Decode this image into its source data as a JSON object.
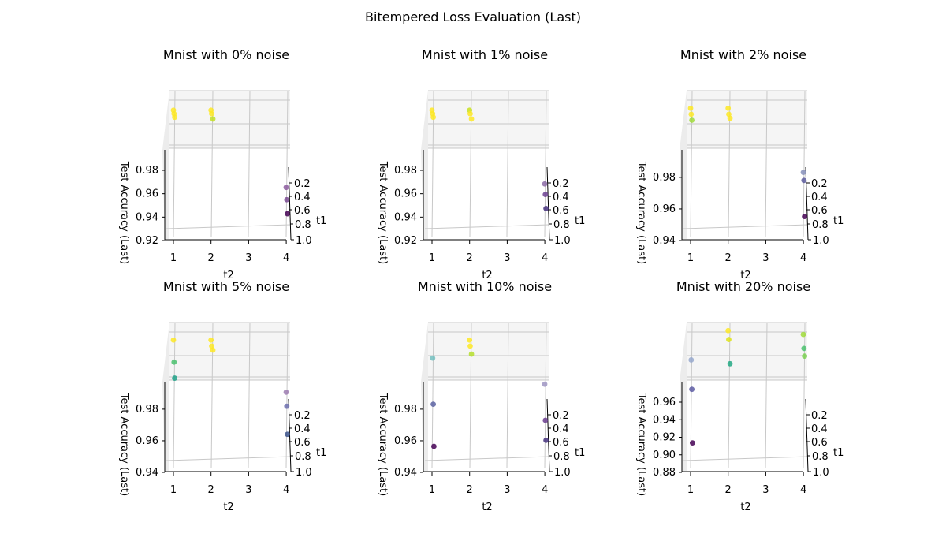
{
  "figure": {
    "title": "Bitempered Loss Evaluation (Last)"
  },
  "chart_data": [
    {
      "type": "scatter",
      "title": "Mnist with 0% noise",
      "xlabel": "t2",
      "ylabel": "t1",
      "zlabel": "Test Accuracy (Last)",
      "x_ticks": [
        "1",
        "2",
        "3",
        "4"
      ],
      "y_ticks": [
        "0.2",
        "0.4",
        "0.6",
        "0.8",
        "1.0"
      ],
      "z_ticks": [
        "0.92",
        "0.94",
        "0.96",
        "0.98"
      ],
      "z_range": [
        0.92,
        1.0
      ],
      "points": [
        {
          "t2": 1,
          "t1": 0.2,
          "acc": 0.992,
          "color": "#fde725"
        },
        {
          "t2": 2,
          "t1": 0.2,
          "acc": 0.992,
          "color": "#fde725"
        },
        {
          "t2": 1,
          "t1": 0.4,
          "acc": 0.99,
          "color": "#fde725"
        },
        {
          "t2": 2,
          "t1": 0.4,
          "acc": 0.99,
          "color": "#fde725"
        },
        {
          "t2": 1,
          "t1": 0.6,
          "acc": 0.988,
          "color": "#fde725"
        },
        {
          "t2": 2,
          "t1": 0.8,
          "acc": 0.987,
          "color": "#c2df23"
        },
        {
          "t2": 4,
          "t1": 0.2,
          "acc": 0.948,
          "color": "#8b5b9e"
        },
        {
          "t2": 4,
          "t1": 0.4,
          "acc": 0.941,
          "color": "#7a4a92"
        },
        {
          "t2": 4,
          "t1": 0.6,
          "acc": 0.933,
          "color": "#440154"
        }
      ]
    },
    {
      "type": "scatter",
      "title": "Mnist with 1% noise",
      "xlabel": "t2",
      "ylabel": "t1",
      "zlabel": "Test Accuracy (Last)",
      "x_ticks": [
        "1",
        "2",
        "3",
        "4"
      ],
      "y_ticks": [
        "0.2",
        "0.4",
        "0.6",
        "0.8",
        "1.0"
      ],
      "z_ticks": [
        "0.92",
        "0.94",
        "0.96",
        "0.98"
      ],
      "z_range": [
        0.92,
        1.0
      ],
      "points": [
        {
          "t2": 1,
          "t1": 0.2,
          "acc": 0.992,
          "color": "#fde725"
        },
        {
          "t2": 2,
          "t1": 0.2,
          "acc": 0.992,
          "color": "#c8e020"
        },
        {
          "t2": 1,
          "t1": 0.4,
          "acc": 0.99,
          "color": "#fde725"
        },
        {
          "t2": 2,
          "t1": 0.4,
          "acc": 0.99,
          "color": "#fde725"
        },
        {
          "t2": 1,
          "t1": 0.6,
          "acc": 0.988,
          "color": "#fde725"
        },
        {
          "t2": 2,
          "t1": 0.8,
          "acc": 0.987,
          "color": "#fde725"
        },
        {
          "t2": 4,
          "t1": 0.2,
          "acc": 0.95,
          "color": "#8b6aa6"
        },
        {
          "t2": 4,
          "t1": 0.4,
          "acc": 0.944,
          "color": "#6b3f91"
        },
        {
          "t2": 4,
          "t1": 0.6,
          "acc": 0.936,
          "color": "#46337e"
        }
      ]
    },
    {
      "type": "scatter",
      "title": "Mnist with 2% noise",
      "xlabel": "t2",
      "ylabel": "t1",
      "zlabel": "Test Accuracy (Last)",
      "x_ticks": [
        "1",
        "2",
        "3",
        "4"
      ],
      "y_ticks": [
        "0.2",
        "0.4",
        "0.6",
        "0.8",
        "1.0"
      ],
      "z_ticks": [
        "0.94",
        "0.96",
        "0.98"
      ],
      "z_range": [
        0.93,
        1.0
      ],
      "points": [
        {
          "t2": 1,
          "t1": 0.2,
          "acc": 0.994,
          "color": "#fde725"
        },
        {
          "t2": 2,
          "t1": 0.2,
          "acc": 0.994,
          "color": "#fde725"
        },
        {
          "t2": 1,
          "t1": 0.4,
          "acc": 0.991,
          "color": "#fde725"
        },
        {
          "t2": 2,
          "t1": 0.4,
          "acc": 0.991,
          "color": "#fde725"
        },
        {
          "t2": 1,
          "t1": 0.6,
          "acc": 0.988,
          "color": "#a0da39"
        },
        {
          "t2": 2,
          "t1": 0.8,
          "acc": 0.989,
          "color": "#fde725"
        },
        {
          "t2": 4,
          "t1": 0.2,
          "acc": 0.962,
          "color": "#8790bb"
        },
        {
          "t2": 4,
          "t1": 0.4,
          "acc": 0.958,
          "color": "#5c5b9c"
        },
        {
          "t2": 4,
          "t1": 0.6,
          "acc": 0.94,
          "color": "#440154"
        }
      ]
    },
    {
      "type": "scatter",
      "title": "Mnist with 5% noise",
      "xlabel": "t2",
      "ylabel": "t1",
      "zlabel": "Test Accuracy (Last)",
      "x_ticks": [
        "1",
        "2",
        "3",
        "4"
      ],
      "y_ticks": [
        "0.2",
        "0.4",
        "0.6",
        "0.8",
        "1.0"
      ],
      "z_ticks": [
        "0.94",
        "0.96",
        "0.98"
      ],
      "z_range": [
        0.93,
        1.0
      ],
      "points": [
        {
          "t2": 1,
          "t1": 0.2,
          "acc": 0.994,
          "color": "#fde725"
        },
        {
          "t2": 2,
          "t1": 0.2,
          "acc": 0.994,
          "color": "#fde725"
        },
        {
          "t2": 1,
          "t1": 0.4,
          "acc": 0.983,
          "color": "#4ac16d"
        },
        {
          "t2": 2,
          "t1": 0.4,
          "acc": 0.991,
          "color": "#fde725"
        },
        {
          "t2": 1,
          "t1": 0.6,
          "acc": 0.975,
          "color": "#1fa187"
        },
        {
          "t2": 2,
          "t1": 0.8,
          "acc": 0.989,
          "color": "#fde725"
        },
        {
          "t2": 4,
          "t1": 0.2,
          "acc": 0.968,
          "color": "#9c7bb0"
        },
        {
          "t2": 4,
          "t1": 0.4,
          "acc": 0.961,
          "color": "#6c6fae"
        },
        {
          "t2": 4,
          "t1": 0.6,
          "acc": 0.947,
          "color": "#3b528b"
        }
      ]
    },
    {
      "type": "scatter",
      "title": "Mnist with 10% noise",
      "xlabel": "t2",
      "ylabel": "t1",
      "zlabel": "Test Accuracy (Last)",
      "x_ticks": [
        "1",
        "2",
        "3",
        "4"
      ],
      "y_ticks": [
        "0.2",
        "0.4",
        "0.6",
        "0.8",
        "1.0"
      ],
      "z_ticks": [
        "0.94",
        "0.96",
        "0.98"
      ],
      "z_range": [
        0.93,
        1.0
      ],
      "points": [
        {
          "t2": 2,
          "t1": 0.2,
          "acc": 0.994,
          "color": "#fde725"
        },
        {
          "t2": 1,
          "t1": 0.4,
          "acc": 0.985,
          "color": "#74c0bf"
        },
        {
          "t2": 2,
          "t1": 0.4,
          "acc": 0.991,
          "color": "#fde725"
        },
        {
          "t2": 2,
          "t1": 0.8,
          "acc": 0.987,
          "color": "#b5de2b"
        },
        {
          "t2": 1,
          "t1": 0.6,
          "acc": 0.962,
          "color": "#5c63a2"
        },
        {
          "t2": 1,
          "t1": 0.8,
          "acc": 0.941,
          "color": "#440154"
        },
        {
          "t2": 4,
          "t1": 0.2,
          "acc": 0.972,
          "color": "#9d94c2"
        },
        {
          "t2": 4,
          "t1": 0.4,
          "acc": 0.954,
          "color": "#6a3d8e"
        },
        {
          "t2": 4,
          "t1": 0.6,
          "acc": 0.944,
          "color": "#46337e"
        }
      ]
    },
    {
      "type": "scatter",
      "title": "Mnist with 20% noise",
      "xlabel": "t2",
      "ylabel": "t1",
      "zlabel": "Test Accuracy (Last)",
      "x_ticks": [
        "1",
        "2",
        "3",
        "4"
      ],
      "y_ticks": [
        "0.2",
        "0.4",
        "0.6",
        "0.8",
        "1.0"
      ],
      "z_ticks": [
        "0.88",
        "0.90",
        "0.92",
        "0.94",
        "0.96"
      ],
      "z_range": [
        0.88,
        0.99
      ],
      "points": [
        {
          "t2": 2,
          "t1": 0.2,
          "acc": 0.988,
          "color": "#fde725"
        },
        {
          "t2": 2,
          "t1": 0.4,
          "acc": 0.981,
          "color": "#dde318"
        },
        {
          "t2": 1,
          "t1": 0.4,
          "acc": 0.965,
          "color": "#97a8cc"
        },
        {
          "t2": 2,
          "t1": 0.8,
          "acc": 0.962,
          "color": "#22a884"
        },
        {
          "t2": 1,
          "t1": 0.6,
          "acc": 0.942,
          "color": "#5c5ba2"
        },
        {
          "t2": 1,
          "t1": 0.8,
          "acc": 0.9,
          "color": "#440154"
        },
        {
          "t2": 4,
          "t1": 0.2,
          "acc": 0.985,
          "color": "#a0da39"
        },
        {
          "t2": 4,
          "t1": 0.4,
          "acc": 0.974,
          "color": "#4ac16d"
        },
        {
          "t2": 4,
          "t1": 0.6,
          "acc": 0.968,
          "color": "#7ad151"
        }
      ]
    }
  ]
}
